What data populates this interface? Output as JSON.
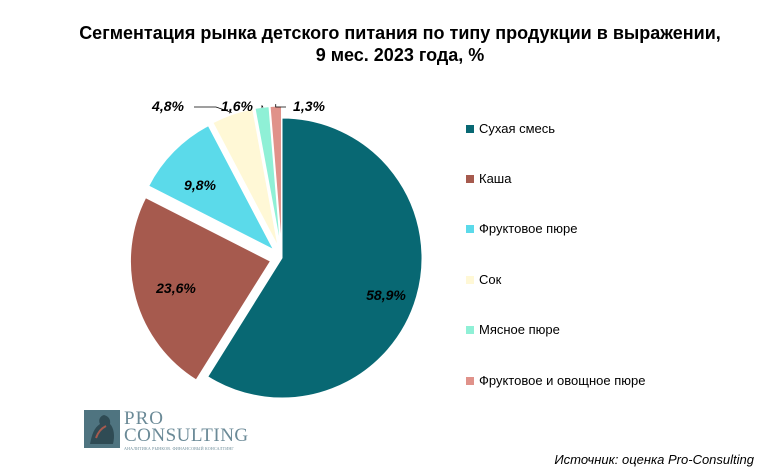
{
  "chart_data": {
    "type": "pie",
    "title_lines": [
      "Сегментация рынка детского питания по типу продукции в выражении,",
      "9 мес. 2023 года, %"
    ],
    "slices": [
      {
        "label": "Сухая смесь",
        "value": 58.9,
        "display": "58,9%",
        "color": "#086873"
      },
      {
        "label": "Каша",
        "value": 23.6,
        "display": "23,6%",
        "color": "#a65a4e"
      },
      {
        "label": "Фруктовое пюре",
        "value": 9.8,
        "display": "9,8%",
        "color": "#5bdaea"
      },
      {
        "label": "Сок",
        "value": 4.8,
        "display": "4,8%",
        "color": "#fff8d6"
      },
      {
        "label": "Мясное пюре",
        "value": 1.6,
        "display": "1,6%",
        "color": "#8ff0d6"
      },
      {
        "label": "Фруктовое и овощное пюре",
        "value": 1.3,
        "display": "1,3%",
        "color": "#e0928a"
      }
    ],
    "legend_position": "right"
  },
  "source": "Источник: оценка Pro-Consulting",
  "logo": {
    "line1": "PRO",
    "line2": "CONSULTING",
    "tagline": "АНАЛИТИКА РЫНКОВ. ФИНАНСОВЫЙ КОНСАЛТИНГ"
  }
}
